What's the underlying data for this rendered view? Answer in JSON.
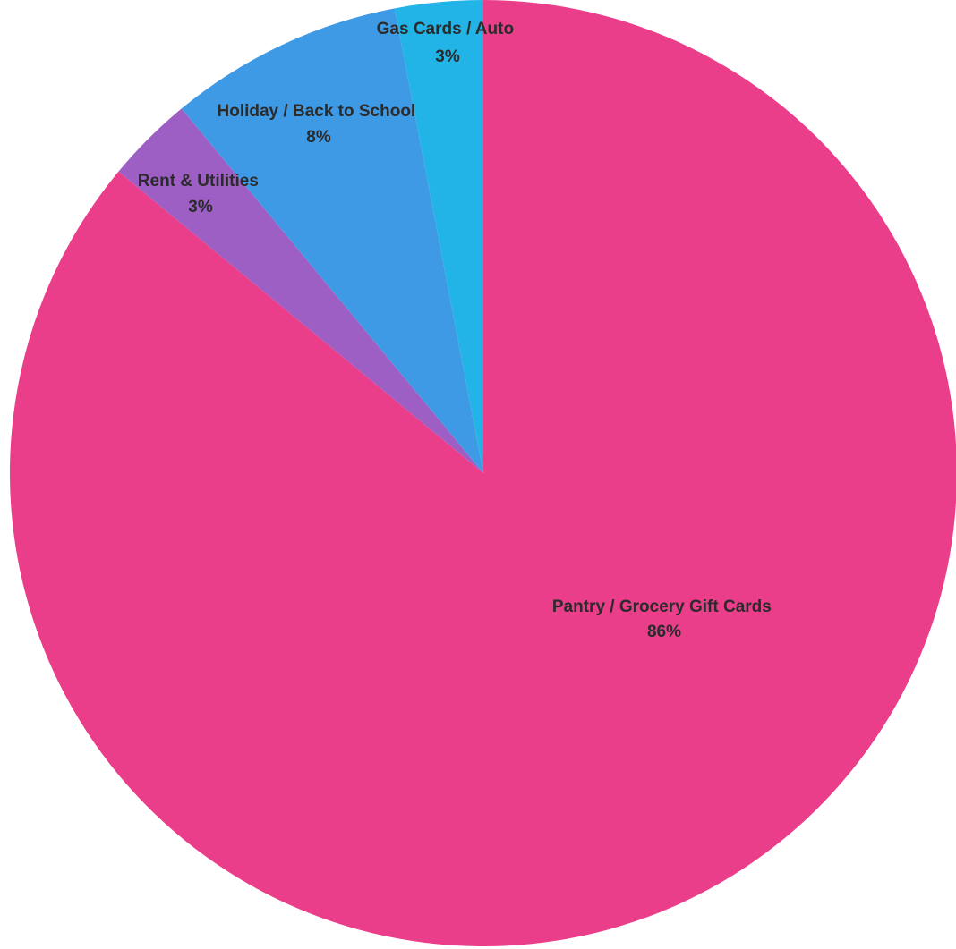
{
  "chart_data": {
    "type": "pie",
    "title": "",
    "start_angle_deg": 0,
    "direction": "clockwise",
    "slices": [
      {
        "label": "Pantry / Grocery Gift Cards",
        "percent_label": "86%",
        "value": 86,
        "color": "#ea3d8a"
      },
      {
        "label": "Rent & Utilities",
        "percent_label": "3%",
        "value": 3,
        "color": "#9e5fc4"
      },
      {
        "label": "Holiday / Back to School",
        "percent_label": "8%",
        "value": 8,
        "color": "#3f9ae6"
      },
      {
        "label": "Gas Cards / Auto",
        "percent_label": "3%",
        "value": 3,
        "color": "#22b4e6"
      }
    ]
  }
}
